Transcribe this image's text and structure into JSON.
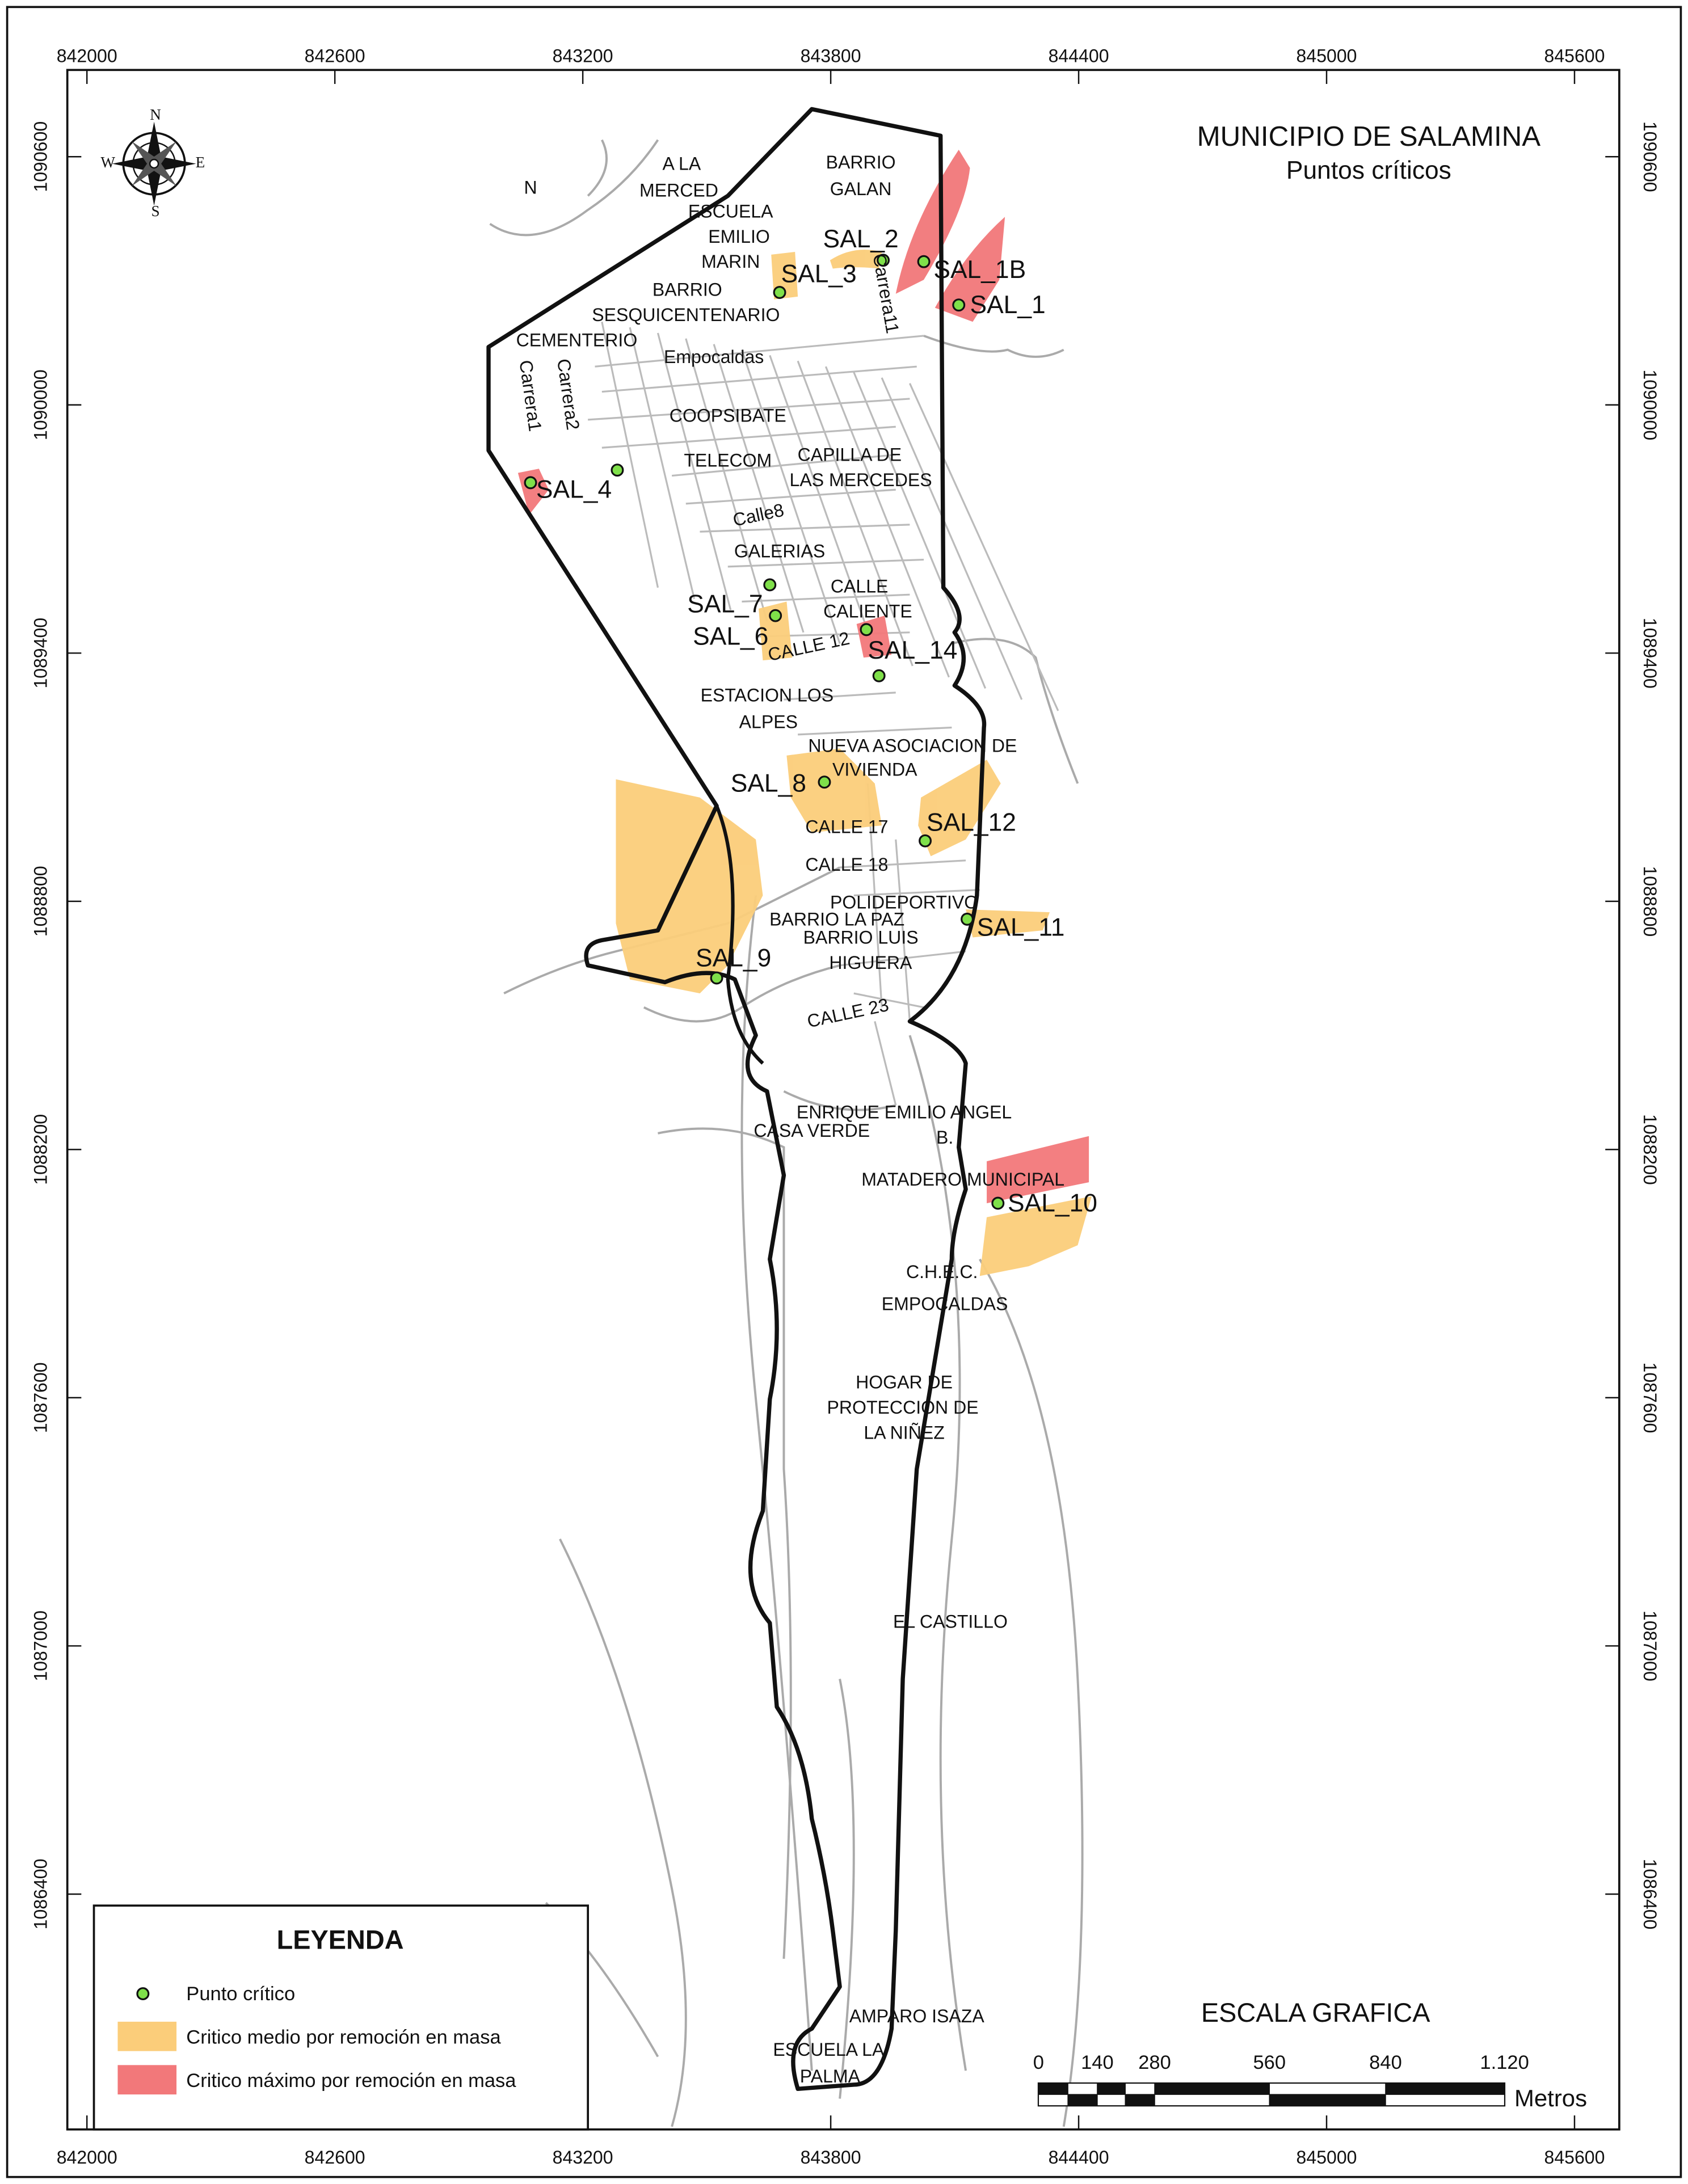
{
  "title": "MUNICIPIO DE SALAMINA",
  "subtitle": "Puntos críticos",
  "axes": {
    "xticks": [
      842000,
      842600,
      843200,
      843800,
      844400,
      845000,
      845600
    ],
    "yticks": [
      1086400,
      1087000,
      1087600,
      1088200,
      1088800,
      1089400,
      1090000,
      1090600
    ]
  },
  "compass": [
    "N",
    "S",
    "E",
    "W"
  ],
  "places": [
    "A LA",
    "MERCED",
    "ESCUELA",
    "EMILIO",
    "MARIN",
    "BARRIO",
    "SESQUICENTENARIO",
    "CEMENTERIO",
    "Empocaldas",
    "Carrera1",
    "Carrera2",
    "COOPSIBATE",
    "TELECOM",
    "CAPILLA DE",
    "LAS MERCEDES",
    "Calle8",
    "GALERIAS",
    "CALLE",
    "CALIENTE",
    "CALLE 12",
    "ESTACION LOS",
    "ALPES",
    "NUEVA ASOCIACION DE",
    "VIVIENDA",
    "CALLE 17",
    "CALLE 18",
    "POLIDEPORTIVO",
    "BARRIO LA PAZ",
    "BARRIO LUIS",
    "HIGUERA",
    "CALLE 23",
    "ENRIQUE EMILIO ANGEL",
    "B.",
    "CASA VERDE",
    "MATADERO MUNICIPAL",
    "C.H.E.C.",
    "EMPOCALDAS",
    "HOGAR DE",
    "PROTECCION DE",
    "LA NIÑEZ",
    "EL CASTILLO",
    "AMPARO ISAZA",
    "ESCUELA LA",
    "PALMA",
    "BARRIO",
    "GALAN",
    "Carrera11",
    "N"
  ],
  "points": [
    "SAL_1",
    "SAL_1B",
    "SAL_2",
    "SAL_3",
    "SAL_4",
    "SAL_7",
    "SAL_6",
    "SAL_14",
    "SAL_8",
    "SAL_12",
    "SAL_11",
    "SAL_9",
    "SAL_10"
  ],
  "legend": {
    "title": "LEYENDA",
    "items": [
      "Punto crítico",
      "Critico medio por remoción en masa",
      "Critico máximo por remoción en masa"
    ]
  },
  "scale": {
    "title": "ESCALA GRAFICA",
    "labels": [
      "0",
      "140",
      "280",
      "560",
      "840",
      "1.120"
    ],
    "unit": "Metros"
  }
}
